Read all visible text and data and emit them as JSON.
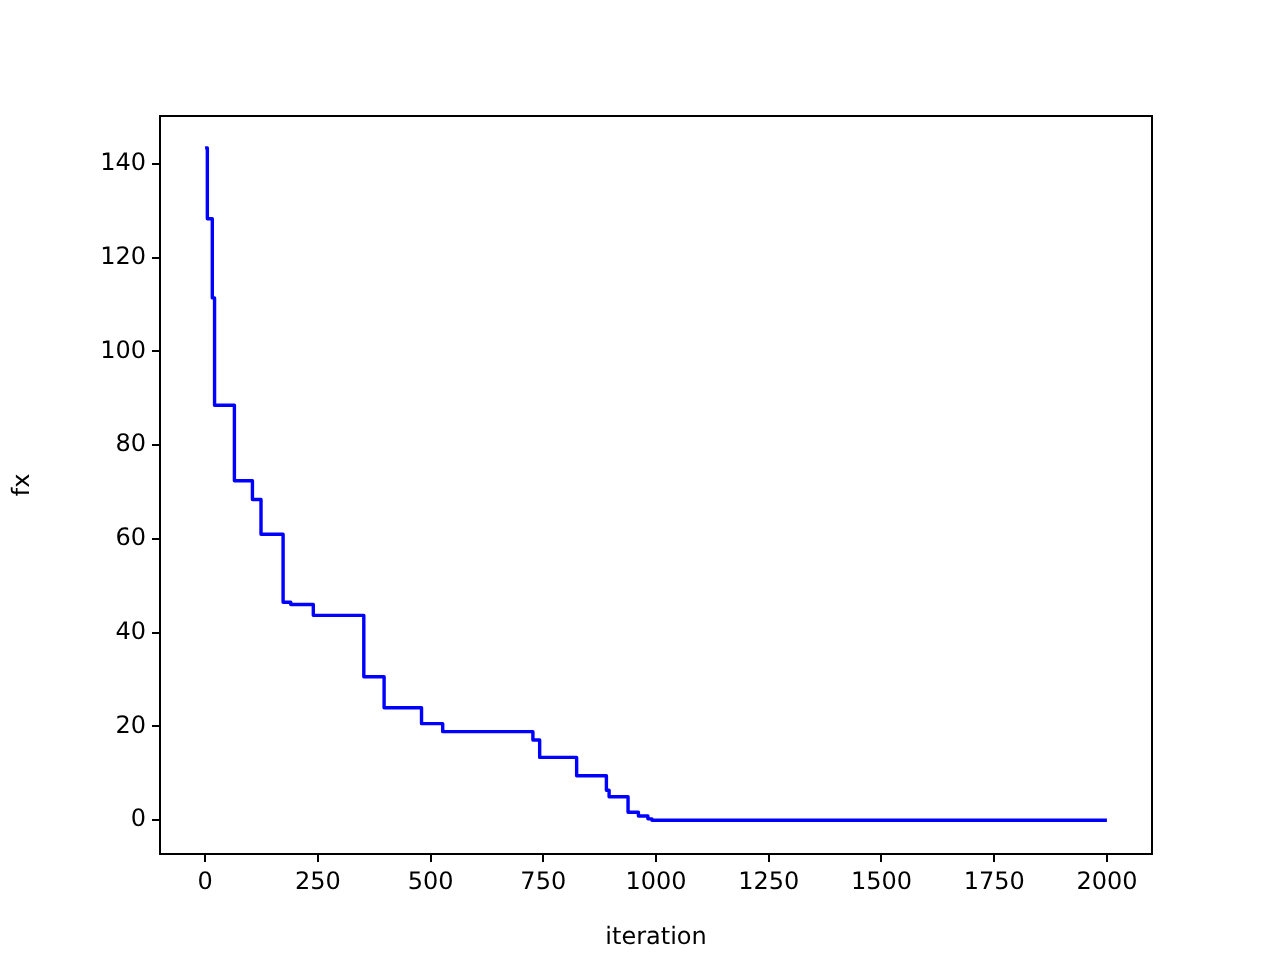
{
  "chart_data": {
    "type": "step",
    "xlabel": "iteration",
    "ylabel": "fx",
    "x": [
      0,
      5,
      16,
      21,
      65,
      105,
      124,
      173,
      190,
      240,
      352,
      397,
      480,
      527,
      727,
      742,
      824,
      890,
      896,
      938,
      961,
      982,
      991,
      2000
    ],
    "series": [
      {
        "color": "#0000ff",
        "values": [
          143.4,
          128.3,
          111.4,
          88.5,
          72.4,
          68.4,
          61.0,
          46.5,
          46.0,
          43.7,
          30.6,
          24.0,
          20.6,
          18.9,
          17.1,
          13.4,
          9.5,
          6.4,
          5.0,
          1.7,
          0.9,
          0.3,
          0,
          0
        ]
      }
    ],
    "xlim": [
      -100,
      2100
    ],
    "ylim": [
      -7.2,
      150.2
    ],
    "xticks": [
      0,
      250,
      500,
      750,
      1000,
      1250,
      1500,
      1750,
      2000
    ],
    "yticks": [
      0,
      20,
      40,
      60,
      80,
      100,
      120,
      140
    ],
    "marker": "none",
    "legend": false,
    "grid": false
  }
}
